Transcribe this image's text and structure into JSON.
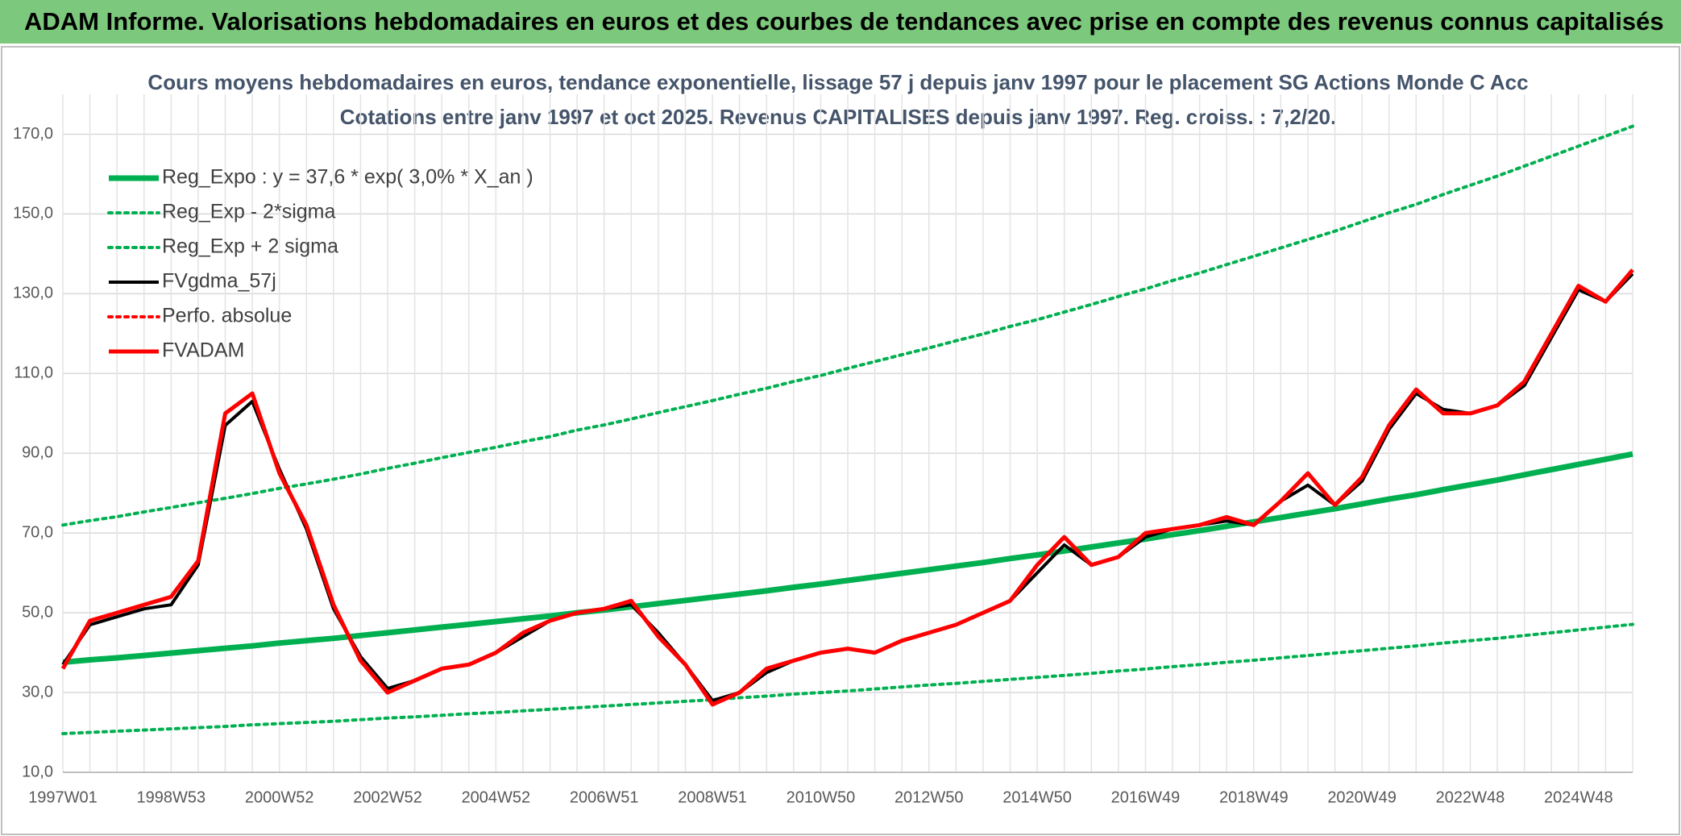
{
  "header": "ADAM Informe. Valorisations hebdomadaires en euros et des courbes de tendances avec prise en compte des revenus connus capitalisés",
  "chart_data": {
    "type": "line",
    "title": "Cours moyens hebdomadaires en euros, tendance exponentielle, lissage 57 j depuis janv 1997 pour le placement SG Actions Monde C Acc",
    "subtitle": "Cotations entre janv 1997 et oct 2025. Revenus CAPITALISES depuis janv 1997. Reg. croiss. : 7,2/20.",
    "categories": [
      "1997W01",
      null,
      null,
      null,
      "1998W53",
      null,
      null,
      null,
      "2000W52",
      null,
      null,
      null,
      "2002W52",
      null,
      null,
      null,
      "2004W52",
      null,
      null,
      null,
      "2006W51",
      null,
      null,
      null,
      "2008W51",
      null,
      null,
      null,
      "2010W50",
      null,
      null,
      null,
      "2012W50",
      null,
      null,
      null,
      "2014W50",
      null,
      null,
      null,
      "2016W49",
      null,
      null,
      null,
      "2018W49",
      null,
      null,
      null,
      "2020W49",
      null,
      null,
      null,
      "2022W48",
      null,
      null,
      null,
      "2024W48",
      null,
      null
    ],
    "ylim": [
      10,
      180
    ],
    "yticks": [
      {
        "value": 10,
        "label": "10,0"
      },
      {
        "value": 30,
        "label": "30,0"
      },
      {
        "value": 50,
        "label": "50,0"
      },
      {
        "value": 70,
        "label": "70,0"
      },
      {
        "value": 90,
        "label": "90,0"
      },
      {
        "value": 110,
        "label": "110,0"
      },
      {
        "value": 130,
        "label": "130,0"
      },
      {
        "value": 150,
        "label": "150,0"
      },
      {
        "value": 170,
        "label": "170,0"
      }
    ],
    "grid": true,
    "legend": "top-left",
    "series": [
      {
        "name": "Reg_Expo : y = 37,6 * exp( 3,0% *  X_an )",
        "color": "#00b050",
        "style": "solid",
        "values": [
          37.6,
          38.2,
          38.7,
          39.3,
          39.9,
          40.5,
          41.1,
          41.7,
          42.4,
          43.0,
          43.6,
          44.3,
          45.0,
          45.7,
          46.4,
          47.1,
          47.8,
          48.5,
          49.2,
          50.0,
          50.7,
          51.5,
          52.3,
          53.1,
          53.9,
          54.7,
          55.5,
          56.4,
          57.2,
          58.1,
          59.0,
          59.9,
          60.8,
          61.7,
          62.6,
          63.6,
          64.5,
          65.5,
          66.5,
          67.5,
          68.5,
          69.6,
          70.6,
          71.7,
          72.8,
          73.9,
          75.0,
          76.1,
          77.3,
          78.5,
          79.6,
          80.9,
          82.1,
          83.3,
          84.6,
          85.9,
          87.2,
          88.5,
          89.8
        ]
      },
      {
        "name": "Reg_Exp - 2*sigma",
        "color": "#00b050",
        "style": "dotted",
        "values": [
          19.7,
          20.0,
          20.3,
          20.6,
          20.9,
          21.2,
          21.5,
          21.9,
          22.2,
          22.5,
          22.8,
          23.2,
          23.6,
          23.9,
          24.3,
          24.7,
          25.0,
          25.4,
          25.8,
          26.2,
          26.6,
          27.0,
          27.4,
          27.8,
          28.2,
          28.7,
          29.1,
          29.6,
          30.0,
          30.4,
          30.9,
          31.4,
          31.9,
          32.3,
          32.8,
          33.3,
          33.8,
          34.3,
          34.8,
          35.4,
          35.9,
          36.5,
          37.0,
          37.6,
          38.1,
          38.7,
          39.3,
          39.9,
          40.5,
          41.1,
          41.7,
          42.4,
          43.0,
          43.6,
          44.3,
          45.0,
          45.7,
          46.4,
          47.1
        ]
      },
      {
        "name": "Reg_Exp + 2 sigma",
        "color": "#00b050",
        "style": "dotted",
        "values": [
          72.0,
          73.1,
          74.1,
          75.3,
          76.4,
          77.6,
          78.7,
          79.9,
          81.2,
          82.3,
          83.5,
          84.8,
          86.2,
          87.5,
          88.9,
          90.2,
          91.5,
          92.9,
          94.2,
          95.8,
          97.1,
          98.6,
          100.2,
          101.7,
          103.2,
          104.8,
          106.3,
          108.0,
          109.5,
          111.3,
          113.0,
          114.7,
          116.4,
          118.2,
          119.9,
          121.8,
          123.5,
          125.4,
          127.3,
          129.3,
          131.2,
          133.3,
          135.2,
          137.3,
          139.4,
          141.5,
          143.6,
          145.7,
          148.0,
          150.3,
          152.4,
          154.9,
          157.2,
          159.5,
          162.0,
          164.5,
          167.0,
          169.5,
          172.0
        ]
      },
      {
        "name": "FVgdma_57j",
        "color": "#000000",
        "style": "solid",
        "values": [
          37,
          47,
          49,
          51,
          52,
          62,
          97,
          103,
          86,
          71,
          51,
          39,
          31,
          33,
          36,
          37,
          40,
          44,
          48,
          50,
          51,
          52,
          45,
          37,
          28,
          30,
          35,
          38,
          40,
          41,
          40,
          43,
          45,
          47,
          50,
          53,
          60,
          67,
          62,
          64,
          69,
          71,
          72,
          73,
          72,
          78,
          82,
          77,
          83,
          96,
          105,
          101,
          100,
          102,
          107,
          119,
          131,
          128,
          135
        ]
      },
      {
        "name": "Perfo. absolue",
        "color": "#ff0000",
        "style": "dotted",
        "values": [
          null,
          null,
          null,
          null,
          null,
          null,
          null,
          null,
          null,
          null,
          null,
          null,
          null,
          null,
          null,
          null,
          null,
          null,
          null,
          null,
          null,
          null,
          null,
          null,
          null,
          null,
          null,
          null,
          null,
          null,
          null,
          null,
          null,
          null,
          null,
          null,
          null,
          null,
          null,
          null,
          null,
          null,
          null,
          null,
          null,
          null,
          null,
          null,
          null,
          null,
          null,
          null,
          null,
          null,
          null,
          null,
          null,
          null,
          null
        ]
      },
      {
        "name": "FVADAM",
        "color": "#ff0000",
        "style": "solid",
        "values": [
          36,
          48,
          50,
          52,
          54,
          63,
          100,
          105,
          85,
          72,
          52,
          38,
          30,
          33,
          36,
          37,
          40,
          45,
          48,
          50,
          51,
          53,
          44,
          37,
          27,
          30,
          36,
          38,
          40,
          41,
          40,
          43,
          45,
          47,
          50,
          53,
          62,
          69,
          62,
          64,
          70,
          71,
          72,
          74,
          72,
          78,
          85,
          77,
          84,
          97,
          106,
          100,
          100,
          102,
          108,
          120,
          132,
          128,
          136
        ]
      }
    ]
  }
}
